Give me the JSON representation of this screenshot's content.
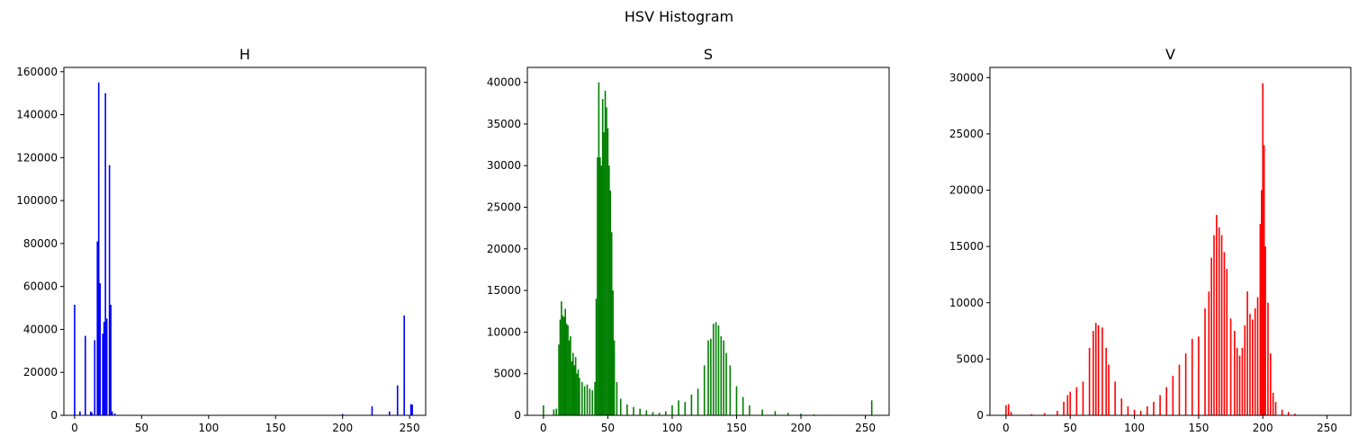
{
  "figure": {
    "suptitle": "HSV Histogram"
  },
  "chart_data": [
    {
      "type": "bar",
      "title": "H",
      "color": "#0000ff",
      "xlim": [
        -8,
        262
      ],
      "ylim": [
        0,
        162000
      ],
      "xticks": [
        0,
        50,
        100,
        150,
        200,
        250
      ],
      "yticks": [
        0,
        20000,
        40000,
        60000,
        80000,
        100000,
        120000,
        140000,
        160000
      ],
      "x": [
        0,
        4,
        8,
        12,
        13,
        15,
        17,
        18,
        19,
        21,
        22,
        23,
        24,
        26,
        27,
        28,
        30,
        200,
        222,
        235,
        241,
        246,
        251,
        252
      ],
      "values": [
        51500,
        1800,
        37000,
        1800,
        1200,
        35000,
        81000,
        155000,
        61500,
        38000,
        43500,
        150000,
        45000,
        116500,
        51500,
        1800,
        900,
        600,
        4200,
        1800,
        14000,
        46500,
        5200,
        5000
      ]
    },
    {
      "type": "bar",
      "title": "S",
      "color": "#008000",
      "xlim": [
        -12.5,
        268.5
      ],
      "ylim": [
        0,
        41800
      ],
      "xticks": [
        0,
        50,
        100,
        150,
        200,
        250
      ],
      "yticks": [
        0,
        5000,
        10000,
        15000,
        20000,
        25000,
        30000,
        35000,
        40000
      ],
      "x": [
        0,
        8,
        10,
        12,
        13,
        14,
        15,
        16,
        17,
        18,
        19,
        20,
        21,
        22,
        23,
        24,
        25,
        26,
        27,
        28,
        30,
        32,
        34,
        36,
        38,
        40,
        41,
        42,
        43,
        44,
        45,
        46,
        47,
        48,
        49,
        50,
        51,
        52,
        53,
        54,
        55,
        57,
        60,
        65,
        70,
        75,
        80,
        85,
        90,
        95,
        100,
        105,
        110,
        115,
        120,
        125,
        128,
        130,
        132,
        134,
        136,
        138,
        140,
        142,
        145,
        150,
        155,
        160,
        170,
        180,
        190,
        200,
        210,
        220,
        255
      ],
      "values": [
        1200,
        700,
        800,
        8500,
        11500,
        13700,
        12000,
        11800,
        12800,
        11000,
        10800,
        9000,
        9500,
        6500,
        7500,
        6000,
        7000,
        5000,
        5500,
        4500,
        4000,
        3500,
        3700,
        3200,
        3000,
        4000,
        14000,
        31000,
        40000,
        31000,
        30000,
        38000,
        34000,
        39000,
        37000,
        34500,
        30000,
        27000,
        22000,
        15000,
        9000,
        4000,
        2000,
        1300,
        1000,
        800,
        600,
        400,
        300,
        500,
        1200,
        1800,
        1600,
        2500,
        3200,
        6000,
        9000,
        9200,
        11000,
        11200,
        10800,
        9500,
        9000,
        7500,
        6000,
        3500,
        2200,
        1200,
        700,
        500,
        300,
        200,
        120,
        60,
        1800
      ]
    },
    {
      "type": "bar",
      "title": "V",
      "color": "#ff0000",
      "xlim": [
        -12.5,
        268.5
      ],
      "ylim": [
        0,
        30900
      ],
      "xticks": [
        0,
        50,
        100,
        150,
        200,
        250
      ],
      "yticks": [
        0,
        5000,
        10000,
        15000,
        20000,
        25000,
        30000
      ],
      "x": [
        0,
        2,
        4,
        10,
        20,
        30,
        40,
        45,
        48,
        50,
        55,
        60,
        65,
        68,
        70,
        72,
        75,
        78,
        80,
        85,
        90,
        95,
        100,
        105,
        110,
        115,
        120,
        125,
        130,
        135,
        140,
        145,
        150,
        155,
        158,
        160,
        162,
        164,
        166,
        168,
        170,
        172,
        175,
        178,
        180,
        182,
        184,
        186,
        188,
        190,
        192,
        194,
        196,
        198,
        199,
        200,
        201,
        202,
        204,
        206,
        208,
        210,
        215,
        220,
        225,
        230
      ],
      "values": [
        900,
        1000,
        300,
        50,
        100,
        200,
        400,
        1200,
        1800,
        2100,
        2500,
        3000,
        6000,
        7500,
        8200,
        8000,
        7800,
        6000,
        4500,
        3000,
        1500,
        800,
        500,
        400,
        800,
        1200,
        1800,
        2500,
        3500,
        4500,
        5500,
        6800,
        7000,
        9500,
        11000,
        14000,
        16000,
        17800,
        16700,
        16000,
        14500,
        13000,
        8600,
        7500,
        6000,
        5300,
        6000,
        8000,
        11000,
        9000,
        8500,
        9500,
        10500,
        17000,
        20000,
        29500,
        24000,
        15000,
        10000,
        5500,
        2000,
        1200,
        500,
        300,
        150,
        30
      ]
    }
  ]
}
